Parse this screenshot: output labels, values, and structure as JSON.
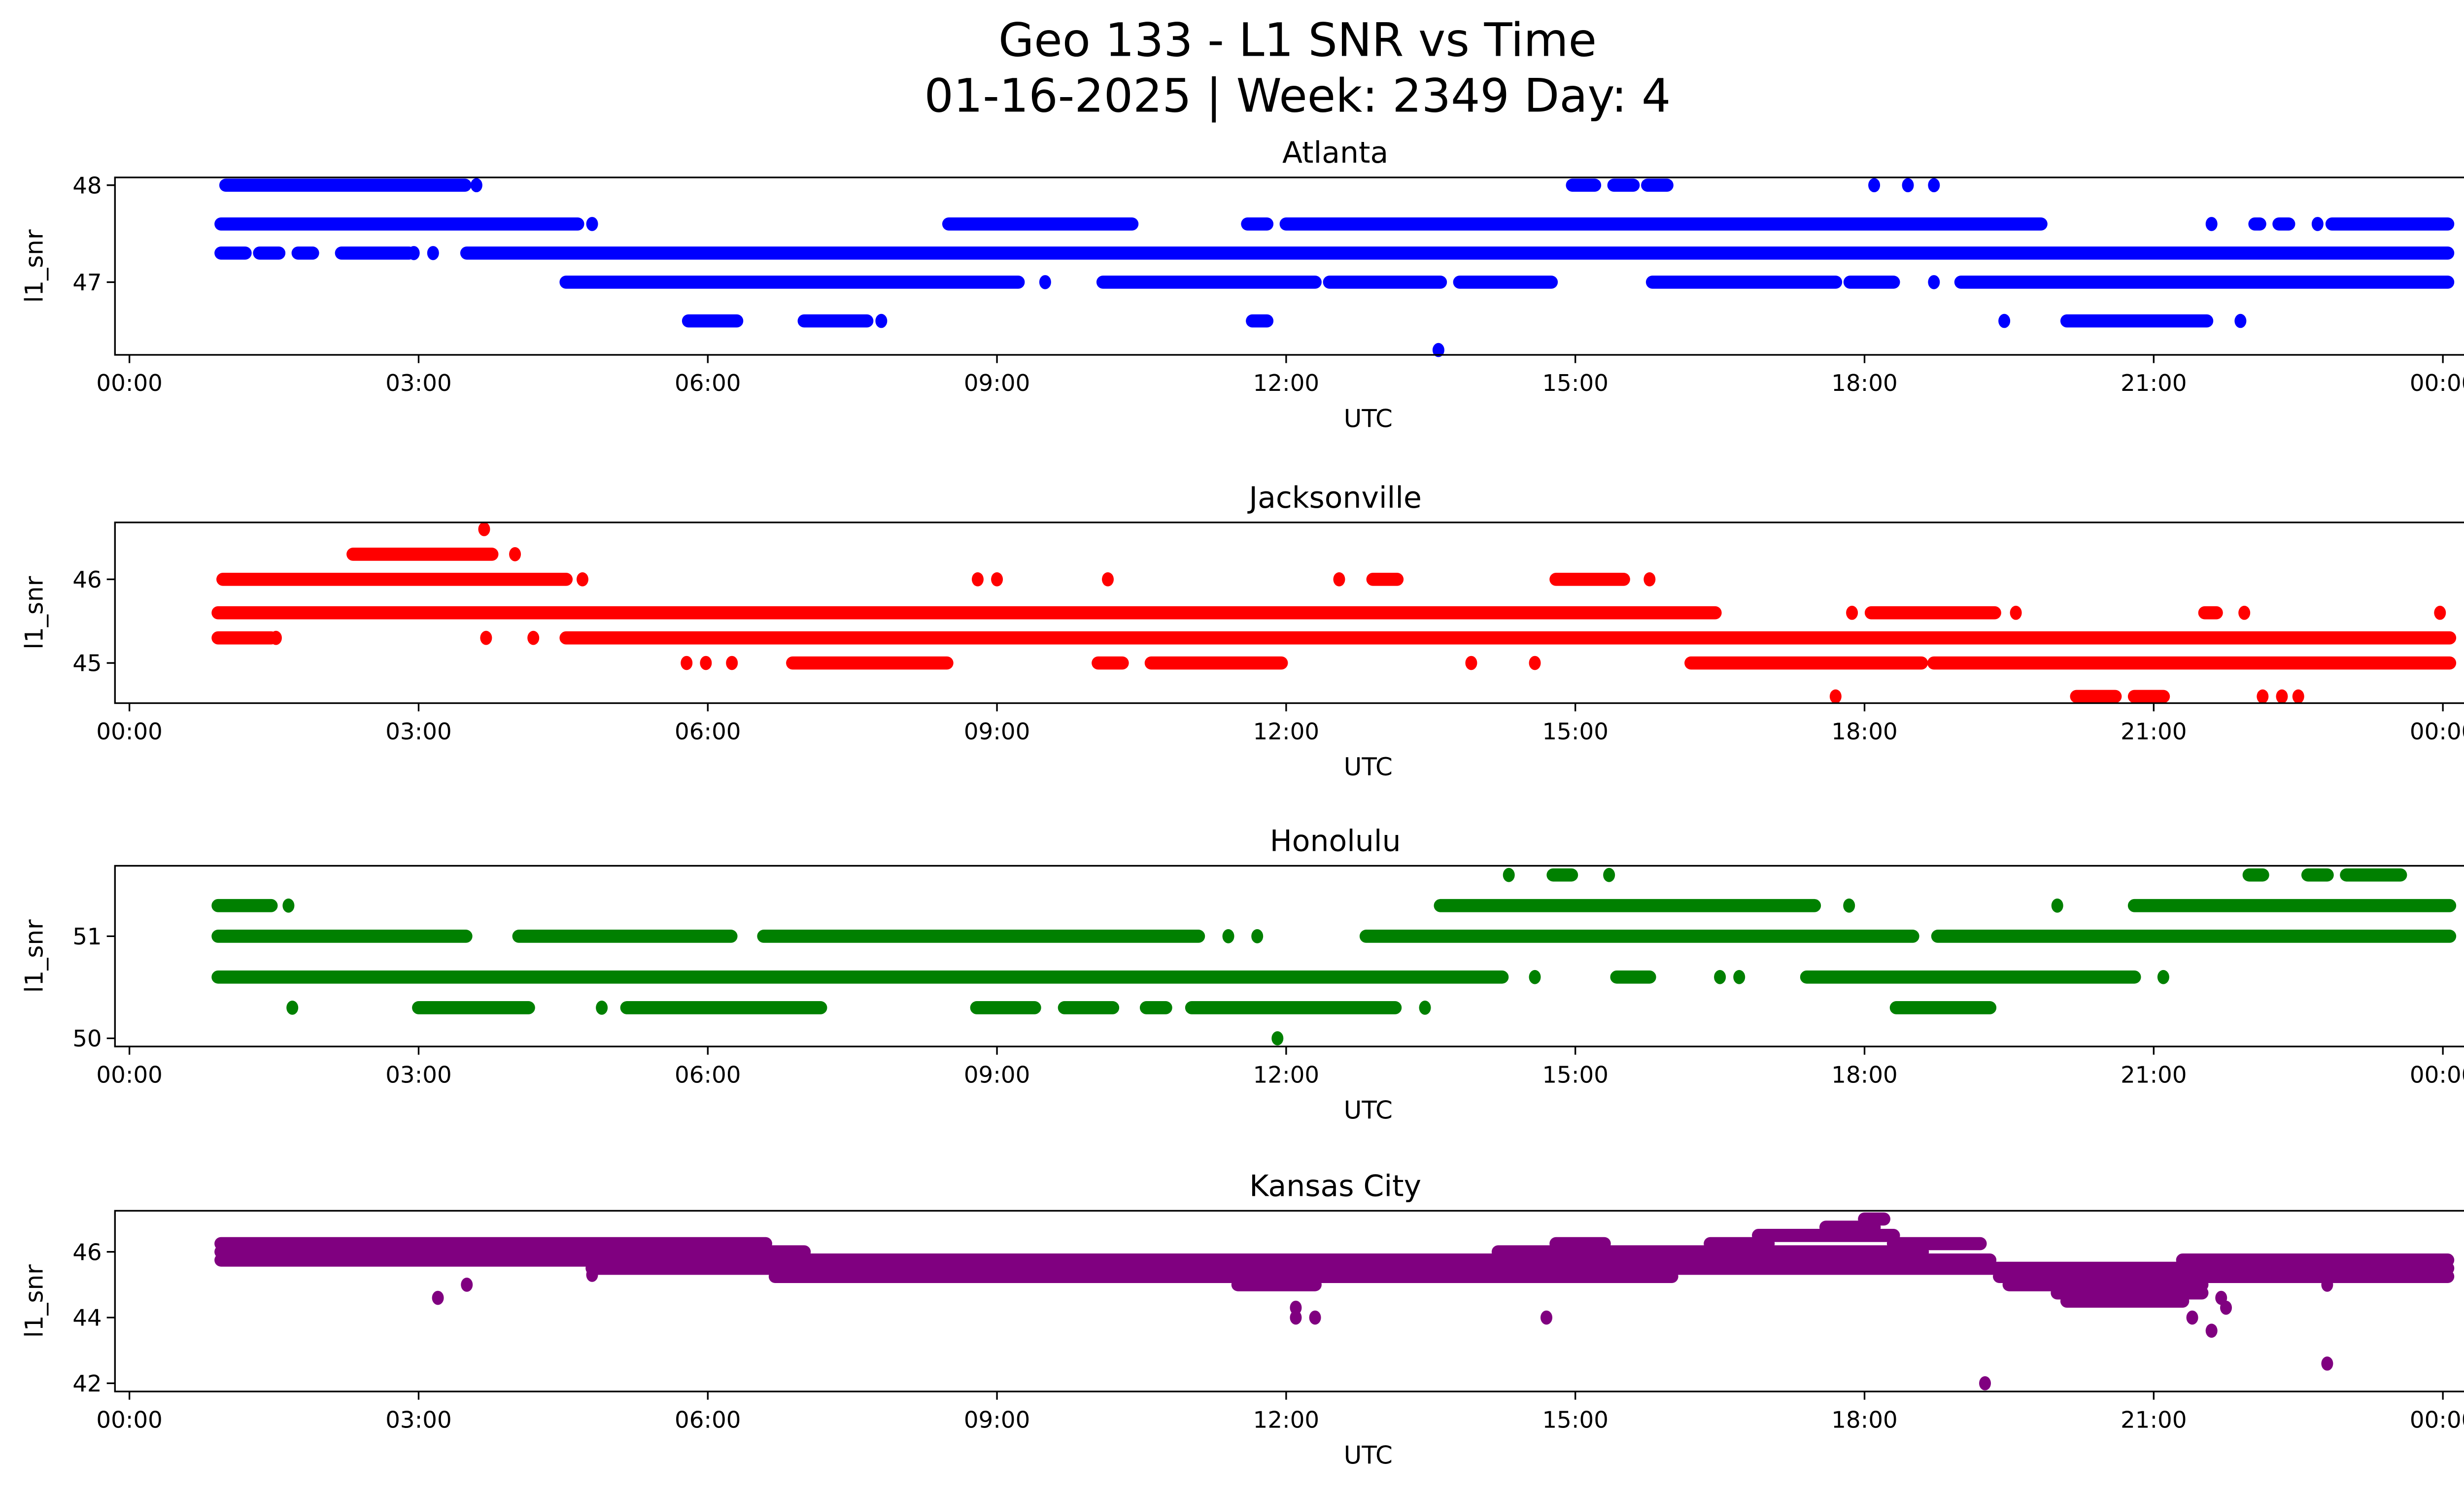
{
  "title_line1": "Geo 133 - L1 SNR vs Time",
  "title_line2": "01-16-2025 | Week: 2349 Day: 4",
  "chart_data": [
    {
      "type": "scatter",
      "title": "Atlanta",
      "xlabel": "UTC",
      "ylabel": "l1_snr",
      "color": "#0000ff",
      "xlim_hours": [
        -0.15,
        25.17
      ],
      "ylim": [
        46.25,
        48.08
      ],
      "xticks": [
        {
          "h": 0,
          "label": "00:00"
        },
        {
          "h": 3,
          "label": "03:00"
        },
        {
          "h": 6,
          "label": "06:00"
        },
        {
          "h": 9,
          "label": "09:00"
        },
        {
          "h": 12,
          "label": "12:00"
        },
        {
          "h": 15,
          "label": "15:00"
        },
        {
          "h": 18,
          "label": "18:00"
        },
        {
          "h": 21,
          "label": "21:00"
        },
        {
          "h": 24,
          "label": "00:00"
        }
      ],
      "yticks": [
        {
          "v": 47,
          "label": "47"
        },
        {
          "v": 48,
          "label": "48"
        }
      ],
      "runs": [
        [
          1.0,
          3.48,
          48.0
        ],
        [
          14.97,
          15.2,
          48.0
        ],
        [
          15.4,
          15.6,
          48.0
        ],
        [
          15.75,
          15.95,
          48.0
        ],
        [
          0.95,
          4.65,
          47.6
        ],
        [
          8.5,
          10.4,
          47.6
        ],
        [
          11.6,
          11.8,
          47.6
        ],
        [
          12.0,
          19.83,
          47.6
        ],
        [
          22.05,
          22.1,
          47.6
        ],
        [
          22.3,
          22.4,
          47.6
        ],
        [
          22.85,
          24.05,
          47.6
        ],
        [
          0.95,
          1.2,
          47.3
        ],
        [
          1.35,
          1.55,
          47.3
        ],
        [
          1.75,
          1.9,
          47.3
        ],
        [
          2.2,
          2.9,
          47.3
        ],
        [
          3.5,
          24.05,
          47.3
        ],
        [
          4.53,
          9.22,
          47.0
        ],
        [
          10.1,
          12.3,
          47.0
        ],
        [
          12.45,
          13.6,
          47.0
        ],
        [
          13.8,
          14.75,
          47.0
        ],
        [
          15.8,
          17.7,
          47.0
        ],
        [
          17.85,
          18.3,
          47.0
        ],
        [
          19.0,
          24.05,
          47.0
        ],
        [
          5.8,
          6.3,
          46.6
        ],
        [
          7.0,
          7.65,
          46.6
        ],
        [
          11.65,
          11.8,
          46.6
        ],
        [
          20.1,
          21.55,
          46.6
        ]
      ],
      "points": [
        [
          3.6,
          48.0
        ],
        [
          18.1,
          48.0
        ],
        [
          18.45,
          48.0
        ],
        [
          18.72,
          48.0
        ],
        [
          4.8,
          47.6
        ],
        [
          21.6,
          47.6
        ],
        [
          22.7,
          47.6
        ],
        [
          2.95,
          47.3
        ],
        [
          3.15,
          47.3
        ],
        [
          9.5,
          47.0
        ],
        [
          18.72,
          47.0
        ],
        [
          7.8,
          46.6
        ],
        [
          19.45,
          46.6
        ],
        [
          21.9,
          46.6
        ],
        [
          13.58,
          46.3
        ]
      ]
    },
    {
      "type": "scatter",
      "title": "Jacksonville",
      "xlabel": "UTC",
      "ylabel": "l1_snr",
      "color": "#ff0000",
      "xlim_hours": [
        -0.15,
        25.17
      ],
      "ylim": [
        44.52,
        46.68
      ],
      "xticks": [
        {
          "h": 0,
          "label": "00:00"
        },
        {
          "h": 3,
          "label": "03:00"
        },
        {
          "h": 6,
          "label": "06:00"
        },
        {
          "h": 9,
          "label": "09:00"
        },
        {
          "h": 12,
          "label": "12:00"
        },
        {
          "h": 15,
          "label": "15:00"
        },
        {
          "h": 18,
          "label": "18:00"
        },
        {
          "h": 21,
          "label": "21:00"
        },
        {
          "h": 24,
          "label": "00:00"
        }
      ],
      "yticks": [
        {
          "v": 45,
          "label": "45"
        },
        {
          "v": 46,
          "label": "46"
        }
      ],
      "runs": [
        [
          2.32,
          3.76,
          46.3
        ],
        [
          0.97,
          4.53,
          46.0
        ],
        [
          12.9,
          13.15,
          46.0
        ],
        [
          14.8,
          15.5,
          46.0
        ],
        [
          0.92,
          16.45,
          45.6
        ],
        [
          18.07,
          19.35,
          45.6
        ],
        [
          21.53,
          21.65,
          45.6
        ],
        [
          0.92,
          1.47,
          45.3
        ],
        [
          4.53,
          24.07,
          45.3
        ],
        [
          6.88,
          8.48,
          45.0
        ],
        [
          10.05,
          10.3,
          45.0
        ],
        [
          10.6,
          11.95,
          45.0
        ],
        [
          16.2,
          18.59,
          45.0
        ],
        [
          18.72,
          24.07,
          45.0
        ],
        [
          20.2,
          20.6,
          44.6
        ],
        [
          20.8,
          21.1,
          44.6
        ]
      ],
      "points": [
        [
          3.68,
          46.6
        ],
        [
          4.0,
          46.3
        ],
        [
          4.7,
          46.0
        ],
        [
          8.8,
          46.0
        ],
        [
          9.0,
          46.0
        ],
        [
          10.15,
          46.0
        ],
        [
          12.55,
          46.0
        ],
        [
          15.77,
          46.0
        ],
        [
          17.87,
          45.6
        ],
        [
          19.57,
          45.6
        ],
        [
          21.94,
          45.6
        ],
        [
          23.97,
          45.6
        ],
        [
          1.52,
          45.3
        ],
        [
          3.7,
          45.3
        ],
        [
          4.19,
          45.3
        ],
        [
          5.78,
          45.0
        ],
        [
          5.98,
          45.0
        ],
        [
          6.25,
          45.0
        ],
        [
          13.92,
          45.0
        ],
        [
          14.58,
          45.0
        ],
        [
          17.7,
          44.6
        ],
        [
          22.13,
          44.6
        ],
        [
          22.33,
          44.6
        ],
        [
          22.5,
          44.6
        ]
      ]
    },
    {
      "type": "scatter",
      "title": "Honolulu",
      "xlabel": "UTC",
      "ylabel": "l1_snr",
      "color": "#008000",
      "xlim_hours": [
        -0.15,
        25.17
      ],
      "ylim": [
        49.92,
        51.69
      ],
      "xticks": [
        {
          "h": 0,
          "label": "00:00"
        },
        {
          "h": 3,
          "label": "03:00"
        },
        {
          "h": 6,
          "label": "06:00"
        },
        {
          "h": 9,
          "label": "09:00"
        },
        {
          "h": 12,
          "label": "12:00"
        },
        {
          "h": 15,
          "label": "15:00"
        },
        {
          "h": 18,
          "label": "18:00"
        },
        {
          "h": 21,
          "label": "21:00"
        },
        {
          "h": 24,
          "label": "00:00"
        }
      ],
      "yticks": [
        {
          "v": 50,
          "label": "50"
        },
        {
          "v": 51,
          "label": "51"
        }
      ],
      "runs": [
        [
          14.77,
          14.96,
          51.6
        ],
        [
          21.99,
          22.13,
          51.6
        ],
        [
          22.6,
          22.8,
          51.6
        ],
        [
          23.0,
          23.56,
          51.6
        ],
        [
          0.92,
          1.47,
          51.3
        ],
        [
          13.6,
          17.48,
          51.3
        ],
        [
          20.8,
          24.07,
          51.3
        ],
        [
          0.92,
          3.49,
          51.0
        ],
        [
          4.04,
          6.24,
          51.0
        ],
        [
          6.58,
          11.09,
          51.0
        ],
        [
          12.83,
          18.5,
          51.0
        ],
        [
          18.76,
          24.07,
          51.0
        ],
        [
          0.92,
          14.24,
          50.6
        ],
        [
          15.43,
          15.77,
          50.6
        ],
        [
          17.4,
          20.8,
          50.6
        ],
        [
          3.0,
          4.14,
          50.3
        ],
        [
          5.16,
          7.17,
          50.3
        ],
        [
          8.79,
          9.39,
          50.3
        ],
        [
          9.7,
          10.2,
          50.3
        ],
        [
          10.55,
          10.75,
          50.3
        ],
        [
          11.02,
          13.13,
          50.3
        ],
        [
          18.33,
          19.3,
          50.3
        ]
      ],
      "points": [
        [
          14.31,
          51.6
        ],
        [
          15.35,
          51.6
        ],
        [
          1.65,
          51.3
        ],
        [
          17.84,
          51.3
        ],
        [
          20.0,
          51.3
        ],
        [
          11.4,
          51.0
        ],
        [
          11.7,
          51.0
        ],
        [
          14.58,
          50.6
        ],
        [
          16.5,
          50.6
        ],
        [
          16.7,
          50.6
        ],
        [
          21.1,
          50.6
        ],
        [
          1.69,
          50.3
        ],
        [
          4.9,
          50.3
        ],
        [
          13.44,
          50.3
        ],
        [
          11.91,
          50.0
        ]
      ]
    },
    {
      "type": "scatter",
      "title": "Kansas City",
      "xlabel": "UTC",
      "ylabel": "l1_snr",
      "color": "#800080",
      "xlim_hours": [
        -0.15,
        25.17
      ],
      "ylim": [
        41.75,
        47.25
      ],
      "xticks": [
        {
          "h": 0,
          "label": "00:00"
        },
        {
          "h": 3,
          "label": "03:00"
        },
        {
          "h": 6,
          "label": "06:00"
        },
        {
          "h": 9,
          "label": "09:00"
        },
        {
          "h": 12,
          "label": "12:00"
        },
        {
          "h": 15,
          "label": "15:00"
        },
        {
          "h": 18,
          "label": "18:00"
        },
        {
          "h": 21,
          "label": "21:00"
        },
        {
          "h": 24,
          "label": "00:00"
        }
      ],
      "yticks": [
        {
          "v": 42,
          "label": "42"
        },
        {
          "v": 44,
          "label": "44"
        },
        {
          "v": 46,
          "label": "46"
        }
      ],
      "runs": [
        [
          0.95,
          6.6,
          46.25
        ],
        [
          14.8,
          15.3,
          46.25
        ],
        [
          16.4,
          17.0,
          46.25
        ],
        [
          18.3,
          19.2,
          46.25
        ],
        [
          16.9,
          18.3,
          46.5
        ],
        [
          17.6,
          18.1,
          46.75
        ],
        [
          18.0,
          18.2,
          47.0
        ],
        [
          0.95,
          7.0,
          46.0
        ],
        [
          14.2,
          18.6,
          46.0
        ],
        [
          0.95,
          19.3,
          45.75
        ],
        [
          21.3,
          24.05,
          45.75
        ],
        [
          4.8,
          24.05,
          45.5
        ],
        [
          6.7,
          16.0,
          45.25
        ],
        [
          19.4,
          24.05,
          45.25
        ],
        [
          11.5,
          12.3,
          45.0
        ],
        [
          19.5,
          21.5,
          45.0
        ],
        [
          20.0,
          21.5,
          44.75
        ],
        [
          20.1,
          21.3,
          44.5
        ]
      ],
      "points": [
        [
          3.2,
          44.6
        ],
        [
          3.5,
          45.0
        ],
        [
          4.8,
          45.3
        ],
        [
          12.1,
          44.3
        ],
        [
          12.1,
          44.0
        ],
        [
          12.3,
          44.0
        ],
        [
          14.7,
          44.0
        ],
        [
          19.25,
          42.0
        ],
        [
          21.2,
          44.6
        ],
        [
          21.4,
          44.0
        ],
        [
          21.6,
          43.6
        ],
        [
          21.7,
          44.6
        ],
        [
          21.75,
          44.3
        ],
        [
          22.8,
          42.6
        ],
        [
          22.8,
          45.0
        ]
      ]
    }
  ]
}
